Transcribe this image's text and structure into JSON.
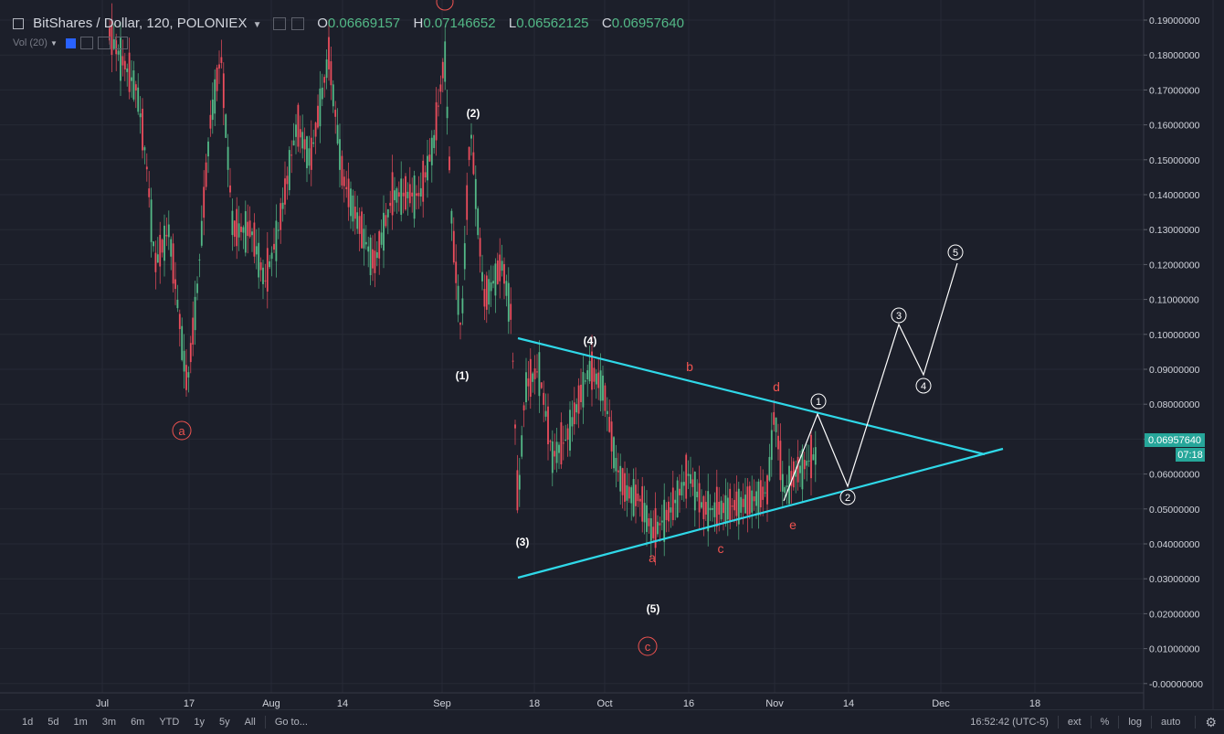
{
  "header": {
    "symbol": "BitShares / Dollar, 120, POLONIEX",
    "ohlc": [
      {
        "label": "O",
        "value": "0.06669157"
      },
      {
        "label": "H",
        "value": "0.07146652"
      },
      {
        "label": "L",
        "value": "0.06562125"
      },
      {
        "label": "C",
        "value": "0.06957640"
      }
    ],
    "volume_indicator": "Vol (20)"
  },
  "price_axis": {
    "labels": [
      "0.19000000",
      "0.18000000",
      "0.17000000",
      "0.16000000",
      "0.15000000",
      "0.14000000",
      "0.13000000",
      "0.12000000",
      "0.11000000",
      "0.10000000",
      "0.09000000",
      "0.08000000",
      "0.07000000",
      "0.06000000",
      "0.05000000",
      "0.04000000",
      "0.03000000",
      "0.02000000",
      "0.01000000",
      "-0.00000000"
    ],
    "current_price": "0.06957640",
    "countdown": "07:18"
  },
  "time_axis": {
    "labels": [
      "Jul",
      "17",
      "Aug",
      "14",
      "Sep",
      "18",
      "Oct",
      "16",
      "Nov",
      "14",
      "Dec",
      "18"
    ]
  },
  "wave_labels": {
    "black": [
      "(1)",
      "(2)",
      "(3)",
      "(4)",
      "(5)"
    ],
    "red": [
      "a",
      "b",
      "c",
      "d",
      "e",
      "a",
      "c"
    ],
    "circled": [
      "1",
      "2",
      "3",
      "4",
      "5"
    ]
  },
  "colors": {
    "background": "#1c1f2a",
    "up_candle": "#53b987",
    "down_candle": "#eb4d5c",
    "trendline": "#2fd8e8",
    "wave_red": "#ef5350",
    "price_badge": "#26a69a"
  },
  "toolbar": {
    "ranges": [
      "1d",
      "5d",
      "1m",
      "3m",
      "6m",
      "YTD",
      "1y",
      "5y",
      "All"
    ],
    "goto": "Go to...",
    "clock": "16:52:42 (UTC-5)",
    "options": [
      "ext",
      "%",
      "log",
      "auto"
    ]
  }
}
